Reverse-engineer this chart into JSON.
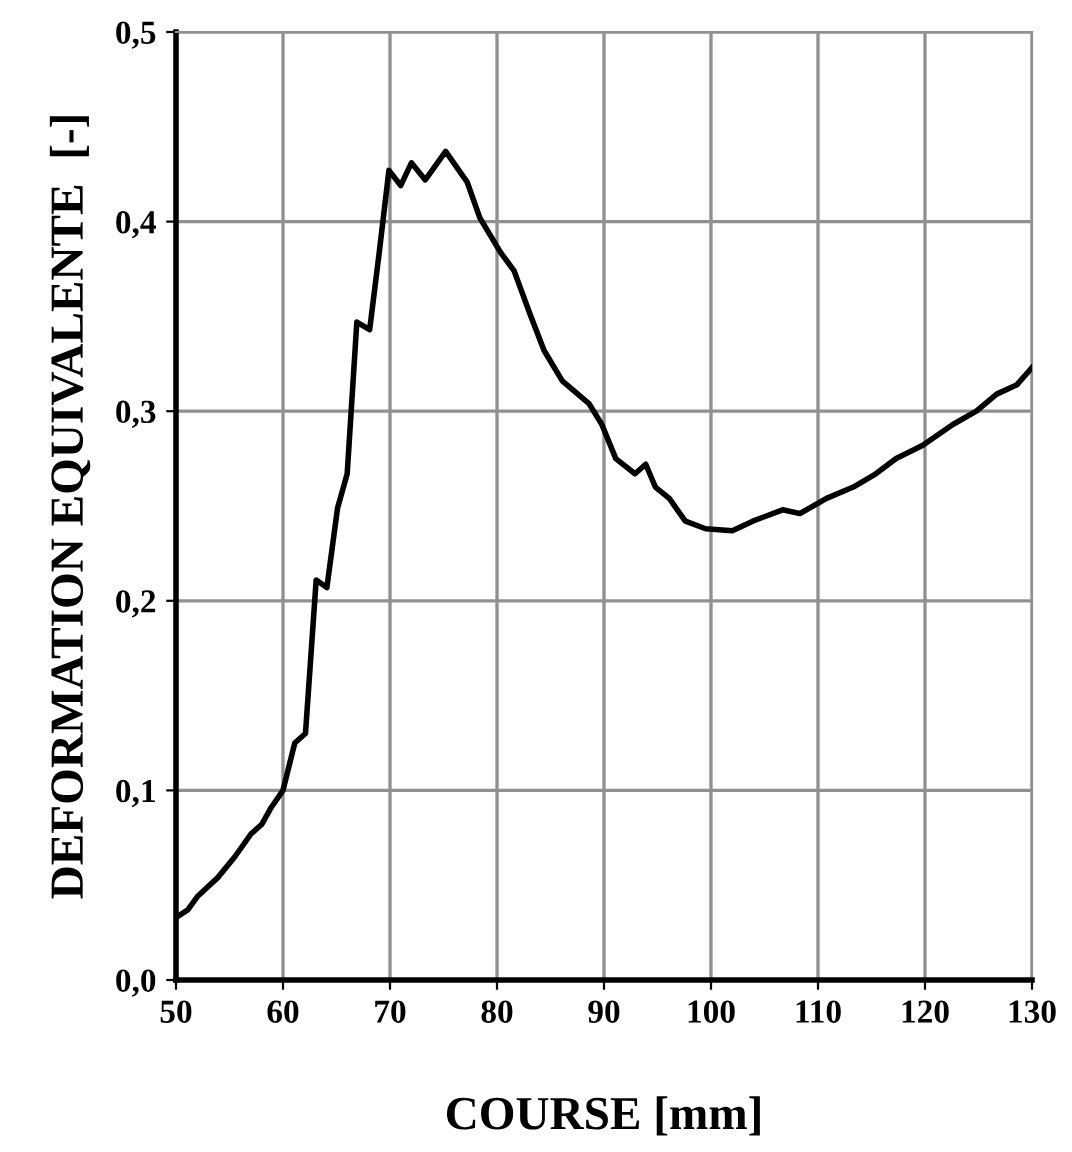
{
  "chart_data": {
    "type": "line",
    "xlabel": "COURSE [mm]",
    "ylabel": "DEFORMATION EQUIVALENTE  [-]",
    "xlim": [
      50,
      130
    ],
    "ylim": [
      0,
      0.5
    ],
    "xticks": [
      50,
      60,
      70,
      80,
      90,
      100,
      110,
      120,
      130
    ],
    "yticks": [
      {
        "value": 0,
        "label": "0,0"
      },
      {
        "value": 0.1,
        "label": "0,1"
      },
      {
        "value": 0.2,
        "label": "0,2"
      },
      {
        "value": 0.3,
        "label": "0,3"
      },
      {
        "value": 0.4,
        "label": "0,4"
      },
      {
        "value": 0.5,
        "label": "0,5"
      }
    ],
    "grid": true,
    "marker": "none",
    "line_style": "solid",
    "series": [
      {
        "color": "#000000",
        "x": [
          50,
          51.1,
          52,
          53.9,
          55.5,
          57,
          58,
          58.9,
          60,
          61.1,
          62.1,
          63.1,
          64.1,
          65.1,
          66,
          66.9,
          68.1,
          69,
          69.9,
          71,
          72,
          73.3,
          75.2,
          77.2,
          78.4,
          80.3,
          81.6,
          83.1,
          84.4,
          86.1,
          88.6,
          89.8,
          91.1,
          92.9,
          93.9,
          94.8,
          96.1,
          97.6,
          99.5,
          102,
          103.9,
          106.7,
          108.3,
          110.8,
          113.3,
          115.4,
          117.3,
          119.8,
          122.6,
          124.8,
          126.7,
          128.6,
          130
        ],
        "values": [
          0.033,
          0.037,
          0.044,
          0.054,
          0.065,
          0.077,
          0.082,
          0.091,
          0.1,
          0.125,
          0.13,
          0.211,
          0.207,
          0.249,
          0.267,
          0.347,
          0.343,
          0.384,
          0.427,
          0.419,
          0.431,
          0.422,
          0.437,
          0.421,
          0.402,
          0.384,
          0.374,
          0.351,
          0.332,
          0.316,
          0.304,
          0.293,
          0.275,
          0.267,
          0.272,
          0.26,
          0.254,
          0.242,
          0.238,
          0.237,
          0.242,
          0.248,
          0.246,
          0.254,
          0.26,
          0.267,
          0.275,
          0.282,
          0.293,
          0.3,
          0.309,
          0.314,
          0.323
        ]
      }
    ]
  }
}
